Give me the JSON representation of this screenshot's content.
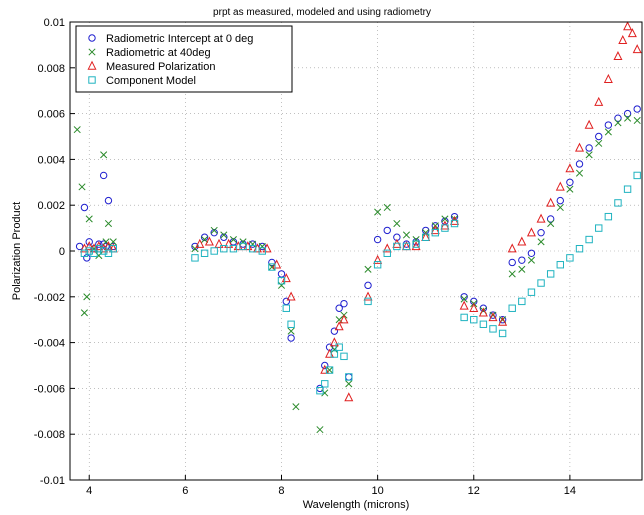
{
  "chart_data": {
    "type": "scatter",
    "title": "prpt as measured, modeled and using radiometry",
    "xlabel": "Wavelength (microns)",
    "ylabel": "Polarization Product",
    "xlim": [
      3.6,
      15.5
    ],
    "ylim": [
      -0.01,
      0.01
    ],
    "x_ticks": [
      4,
      6,
      8,
      10,
      12,
      14
    ],
    "y_ticks": [
      -0.01,
      -0.008,
      -0.006,
      -0.004,
      -0.002,
      0,
      0.002,
      0.004,
      0.006,
      0.008,
      0.01
    ],
    "x_tick_labels": [
      "4",
      "6",
      "8",
      "10",
      "12",
      "14"
    ],
    "y_tick_labels": [
      "-0.01",
      "-0.008",
      "-0.006",
      "-0.004",
      "-0.002",
      "0",
      "0.002",
      "0.004",
      "0.006",
      "0.008",
      "0.01"
    ],
    "grid": true,
    "legend_position": "top-left",
    "series": [
      {
        "name": "Radiometric Intercept at 0 deg",
        "marker": "circle",
        "color": "#1f1fcf",
        "x": [
          3.8,
          3.9,
          4.0,
          4.1,
          4.2,
          4.3,
          4.4,
          4.5,
          4.3,
          3.95,
          4.35,
          6.2,
          6.4,
          6.6,
          6.8,
          7.0,
          7.2,
          7.4,
          7.6,
          7.8,
          8.0,
          8.1,
          8.2,
          8.8,
          8.9,
          9.0,
          9.1,
          9.2,
          9.3,
          9.4,
          9.8,
          10.0,
          10.2,
          10.4,
          10.6,
          10.8,
          11.0,
          11.2,
          11.4,
          11.6,
          11.8,
          12.0,
          12.2,
          12.4,
          12.6,
          12.8,
          13.0,
          13.2,
          13.4,
          13.6,
          13.8,
          14.0,
          14.2,
          14.4,
          14.6,
          14.8,
          15.0,
          15.2,
          15.4
        ],
        "y": [
          0.0002,
          0.0019,
          0.0004,
          0.0001,
          0.0003,
          0.0033,
          0.0022,
          0.0002,
          0.0003,
          -0.0003,
          0.0002,
          0.0002,
          0.0006,
          0.0008,
          0.0006,
          0.0004,
          0.0003,
          0.0003,
          0.0002,
          -0.0005,
          -0.001,
          -0.0022,
          -0.0038,
          -0.006,
          -0.005,
          -0.0042,
          -0.0035,
          -0.0025,
          -0.0023,
          -0.0055,
          -0.0015,
          0.0005,
          0.0009,
          0.0006,
          0.0003,
          0.0004,
          0.0009,
          0.0011,
          0.0013,
          0.0015,
          -0.002,
          -0.0022,
          -0.0025,
          -0.0028,
          -0.003,
          -0.0005,
          -0.0004,
          -0.0001,
          0.0008,
          0.0014,
          0.0022,
          0.003,
          0.0038,
          0.0045,
          0.005,
          0.0055,
          0.0058,
          0.006,
          0.0062
        ]
      },
      {
        "name": "Radiometric at 40deg",
        "marker": "x",
        "color": "#2a8a2a",
        "x": [
          3.75,
          3.85,
          3.9,
          4.0,
          4.1,
          4.2,
          4.3,
          4.4,
          4.5,
          3.95,
          4.35,
          6.2,
          6.4,
          6.6,
          6.8,
          7.0,
          7.2,
          7.4,
          7.6,
          7.8,
          8.0,
          8.2,
          8.3,
          8.8,
          8.9,
          9.0,
          9.1,
          9.2,
          9.3,
          9.4,
          9.8,
          10.0,
          10.2,
          10.4,
          10.6,
          10.8,
          11.0,
          11.2,
          11.4,
          11.6,
          11.8,
          12.0,
          12.2,
          12.4,
          12.6,
          12.8,
          13.0,
          13.2,
          13.4,
          13.6,
          13.8,
          14.0,
          14.2,
          14.4,
          14.6,
          14.8,
          15.0,
          15.2,
          15.4
        ],
        "y": [
          0.0053,
          0.0028,
          -0.0027,
          0.0014,
          0.0001,
          -0.0002,
          0.0042,
          0.0012,
          0.0004,
          -0.002,
          0.0004,
          0.0001,
          0.0005,
          0.0009,
          0.0007,
          0.0005,
          0.0004,
          0.0003,
          0.0002,
          -0.0007,
          -0.0015,
          -0.0035,
          -0.0068,
          -0.0078,
          -0.0062,
          -0.0052,
          -0.0043,
          -0.003,
          -0.0028,
          -0.0058,
          -0.0008,
          0.0017,
          0.0019,
          0.0012,
          0.0007,
          0.0005,
          0.0008,
          0.0011,
          0.0014,
          0.0014,
          -0.0021,
          -0.0023,
          -0.0026,
          -0.0028,
          -0.003,
          -0.001,
          -0.0008,
          -0.0004,
          0.0004,
          0.0012,
          0.0019,
          0.0027,
          0.0034,
          0.0042,
          0.0047,
          0.0052,
          0.0056,
          0.0058,
          0.0057
        ]
      },
      {
        "name": "Measured Polarization",
        "marker": "triangle",
        "color": "#e02020",
        "x": [
          3.9,
          4.0,
          4.1,
          4.2,
          4.3,
          4.4,
          4.5,
          6.3,
          6.5,
          6.7,
          6.9,
          7.1,
          7.3,
          7.5,
          7.7,
          7.9,
          8.1,
          8.2,
          8.9,
          9.0,
          9.1,
          9.2,
          9.3,
          9.4,
          9.8,
          10.0,
          10.2,
          10.4,
          10.6,
          10.8,
          11.0,
          11.2,
          11.4,
          11.6,
          11.8,
          12.0,
          12.2,
          12.4,
          12.6,
          12.8,
          13.0,
          13.2,
          13.4,
          13.6,
          13.8,
          14.0,
          14.2,
          14.4,
          14.6,
          14.8,
          15.0,
          15.1,
          15.2,
          15.3,
          15.4
        ],
        "y": [
          0.0001,
          0.0002,
          0.0001,
          0.0002,
          0.0001,
          0.0002,
          0.0001,
          0.0003,
          0.0004,
          0.0003,
          0.0003,
          0.0002,
          0.0002,
          0.0001,
          0.0001,
          -0.0006,
          -0.0012,
          -0.002,
          -0.0052,
          -0.0045,
          -0.004,
          -0.0033,
          -0.003,
          -0.0064,
          -0.002,
          -0.0004,
          0.0001,
          0.0003,
          0.0002,
          0.0002,
          0.0006,
          0.0009,
          0.0011,
          0.0013,
          -0.0024,
          -0.0025,
          -0.0027,
          -0.0029,
          -0.0031,
          0.0001,
          0.0004,
          0.0008,
          0.0014,
          0.0021,
          0.0028,
          0.0036,
          0.0045,
          0.0055,
          0.0065,
          0.0075,
          0.0085,
          0.0092,
          0.0098,
          0.0095,
          0.0088
        ]
      },
      {
        "name": "Component Model",
        "marker": "square",
        "color": "#1fb3c0",
        "x": [
          3.9,
          4.0,
          4.1,
          4.2,
          4.3,
          4.4,
          4.5,
          6.2,
          6.4,
          6.6,
          6.8,
          7.0,
          7.2,
          7.4,
          7.6,
          7.8,
          8.0,
          8.1,
          8.2,
          8.8,
          8.9,
          9.0,
          9.1,
          9.2,
          9.3,
          9.4,
          9.8,
          10.0,
          10.2,
          10.4,
          10.6,
          10.8,
          11.0,
          11.2,
          11.4,
          11.6,
          11.8,
          12.0,
          12.2,
          12.4,
          12.6,
          12.8,
          13.0,
          13.2,
          13.4,
          13.6,
          13.8,
          14.0,
          14.2,
          14.4,
          14.6,
          14.8,
          15.0,
          15.2,
          15.4
        ],
        "y": [
          -0.0001,
          0.0,
          -0.0001,
          0.0001,
          0.0,
          -0.0001,
          0.0001,
          -0.0003,
          -0.0001,
          0.0,
          0.0001,
          0.0001,
          0.0002,
          0.0001,
          0.0,
          -0.0007,
          -0.0013,
          -0.0025,
          -0.0032,
          -0.0061,
          -0.0058,
          -0.0052,
          -0.0045,
          -0.0042,
          -0.0046,
          -0.0055,
          -0.0022,
          -0.0006,
          -0.0001,
          0.0002,
          0.0002,
          0.0003,
          0.0006,
          0.0008,
          0.001,
          0.0012,
          -0.0029,
          -0.003,
          -0.0032,
          -0.0034,
          -0.0036,
          -0.0025,
          -0.0022,
          -0.0018,
          -0.0014,
          -0.001,
          -0.0006,
          -0.0003,
          0.0001,
          0.0005,
          0.001,
          0.0015,
          0.0021,
          0.0027,
          0.0033
        ]
      }
    ]
  }
}
